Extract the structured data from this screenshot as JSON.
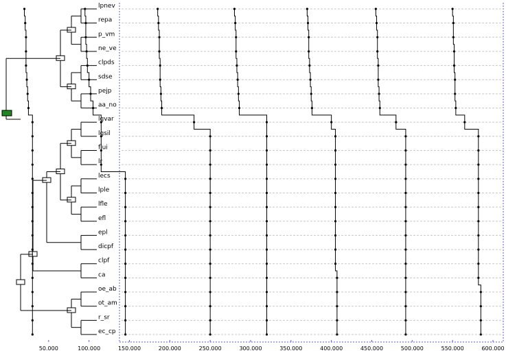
{
  "chart_data": {
    "type": "line",
    "taxa": [
      "lpnev",
      "repa",
      "p_vm",
      "ne_ve",
      "clpds",
      "sdse",
      "pejp",
      "aa_no",
      "lgvar",
      "lgsil",
      "flui",
      "lr",
      "lecs",
      "lple",
      "lfle",
      "efl",
      "epl",
      "dicpf",
      "clpf",
      "ca",
      "oe_ab",
      "ot_am",
      "r_sr",
      "ec_cp"
    ],
    "x_ticks": [
      "50.000",
      "100.000",
      "150.000",
      "200.000",
      "250.000",
      "300.000",
      "350.000",
      "400.000",
      "450.000",
      "500.000",
      "550.000",
      "600.000"
    ],
    "xlim": [
      0,
      610000
    ],
    "series": [
      {
        "values": [
          20000,
          21000,
          22000,
          22000,
          22000,
          23000,
          24000,
          25000,
          30000,
          30000,
          30000,
          30000,
          30000,
          30000,
          30000,
          30000,
          30000,
          30000,
          30000,
          30000,
          30000,
          30000,
          30000,
          30000
        ]
      },
      {
        "values": [
          95000,
          96000,
          96000,
          97000,
          98000,
          100000,
          102000,
          105000,
          115000,
          115000,
          115000,
          115000,
          145000,
          145000,
          145000,
          145000,
          145000,
          145000,
          145000,
          145000,
          145000,
          145000,
          145000,
          145000
        ]
      },
      {
        "values": [
          185000,
          186000,
          187000,
          187000,
          188000,
          188000,
          189000,
          190000,
          230000,
          250000,
          250000,
          250000,
          250000,
          250000,
          250000,
          250000,
          250000,
          250000,
          250000,
          250000,
          250000,
          250000,
          250000,
          250000
        ]
      },
      {
        "values": [
          280000,
          281000,
          282000,
          282000,
          283000,
          284000,
          285000,
          286000,
          320000,
          320000,
          320000,
          320000,
          320000,
          320000,
          320000,
          320000,
          320000,
          320000,
          320000,
          320000,
          320000,
          320000,
          320000,
          320000
        ]
      },
      {
        "values": [
          370000,
          371000,
          372000,
          372000,
          373000,
          374000,
          375000,
          376000,
          400000,
          405000,
          405000,
          405000,
          405000,
          405000,
          405000,
          405000,
          405000,
          405000,
          405000,
          407000,
          407000,
          407000,
          407000,
          407000
        ]
      },
      {
        "values": [
          455000,
          456000,
          457000,
          457000,
          458000,
          458000,
          459000,
          460000,
          480000,
          492000,
          492000,
          492000,
          492000,
          492000,
          492000,
          492000,
          492000,
          492000,
          492000,
          492000,
          492000,
          492000,
          492000,
          492000
        ]
      },
      {
        "values": [
          550000,
          551000,
          551000,
          552000,
          552000,
          553000,
          553000,
          554000,
          565000,
          582000,
          582000,
          582000,
          582000,
          582000,
          582000,
          582000,
          582000,
          582000,
          582000,
          582000,
          585000,
          585000,
          585000,
          585000
        ]
      }
    ]
  }
}
